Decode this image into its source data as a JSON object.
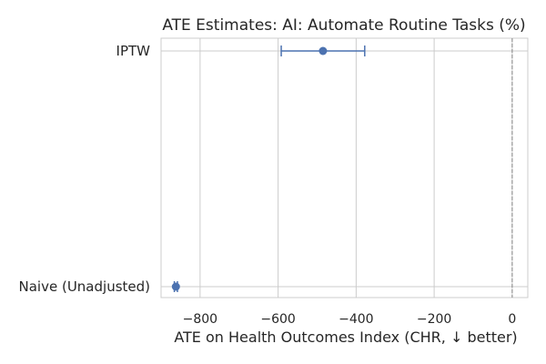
{
  "chart_data": {
    "type": "errorbar",
    "title": "ATE Estimates: AI: Automate Routine Tasks (%)",
    "xlabel": "ATE on Health Outcomes Index (CHR, ↓ better)",
    "ylabel": "",
    "xlim": [
      -900,
      40
    ],
    "x_ticks": [
      -800,
      -600,
      -400,
      -200,
      0
    ],
    "x_tick_labels": [
      "−800",
      "−600",
      "−400",
      "−200",
      "0"
    ],
    "categories": [
      "IPTW",
      "Naive (Unadjusted)"
    ],
    "estimates": [
      {
        "label": "IPTW",
        "value": -485,
        "ci_low": -592,
        "ci_high": -378
      },
      {
        "label": "Naive (Unadjusted)",
        "value": -862,
        "ci_low": -866,
        "ci_high": -858
      }
    ],
    "reference_line": 0,
    "grid": "x",
    "color": "#4c72b0"
  }
}
